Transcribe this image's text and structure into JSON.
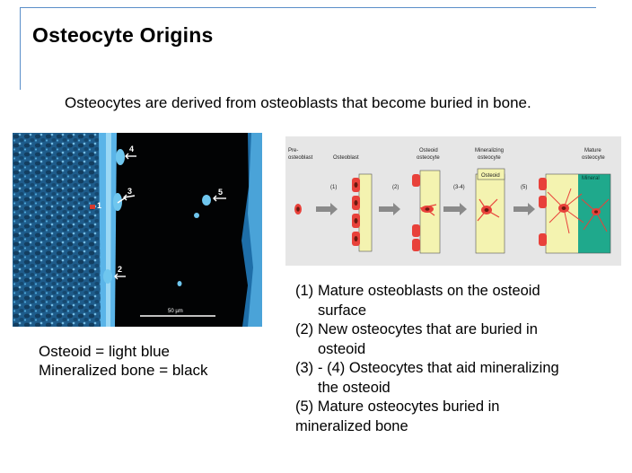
{
  "slide": {
    "title": "Osteocyte Origins",
    "subtitle": "Osteocytes are derived from osteoblasts that become buried in bone."
  },
  "micrograph": {
    "markers": [
      "4",
      "1",
      "3",
      "5",
      "2"
    ],
    "scale_bar": "50 µm"
  },
  "caption": {
    "line1": "Osteoid = light blue",
    "line2": "Mineralized bone = black"
  },
  "diagram": {
    "stage_labels": {
      "preosteoblast_line1": "Pre-",
      "preosteoblast_line2": "osteoblast",
      "osteoblast": "Osteoblast",
      "osteoid_osteocyte_line1": "Osteoid",
      "osteoid_osteocyte_line2": "osteocyte",
      "mineralizing_line1": "Mineralizing",
      "mineralizing_line2": "osteocyte",
      "mature_line1": "Mature",
      "mature_line2": "osteocyte"
    },
    "step_labels": [
      "(1)",
      "(2)",
      "(3-4)",
      "(5)"
    ],
    "layer_labels": {
      "osteoid": "Osteoid",
      "mineral": "Mineral"
    },
    "colors": {
      "cell": "#e8413a",
      "nucleus": "#6a1a10",
      "osteoid": "#f4f3b0",
      "mineral": "#1fa98c",
      "arrow": "#8a8a8a"
    }
  },
  "steps": [
    {
      "num": "(1)",
      "line1": "Mature osteoblasts on the osteoid",
      "line2": "surface"
    },
    {
      "num": "(2)",
      "line1": "New osteocytes that are buried in",
      "line2": "osteoid"
    },
    {
      "num": "(3)",
      "line1": "- (4) Osteocytes that aid mineralizing",
      "line2": "the osteoid"
    },
    {
      "num": "",
      "line1": "(5) Mature osteocytes buried in",
      "line2": "mineralized bone"
    }
  ]
}
